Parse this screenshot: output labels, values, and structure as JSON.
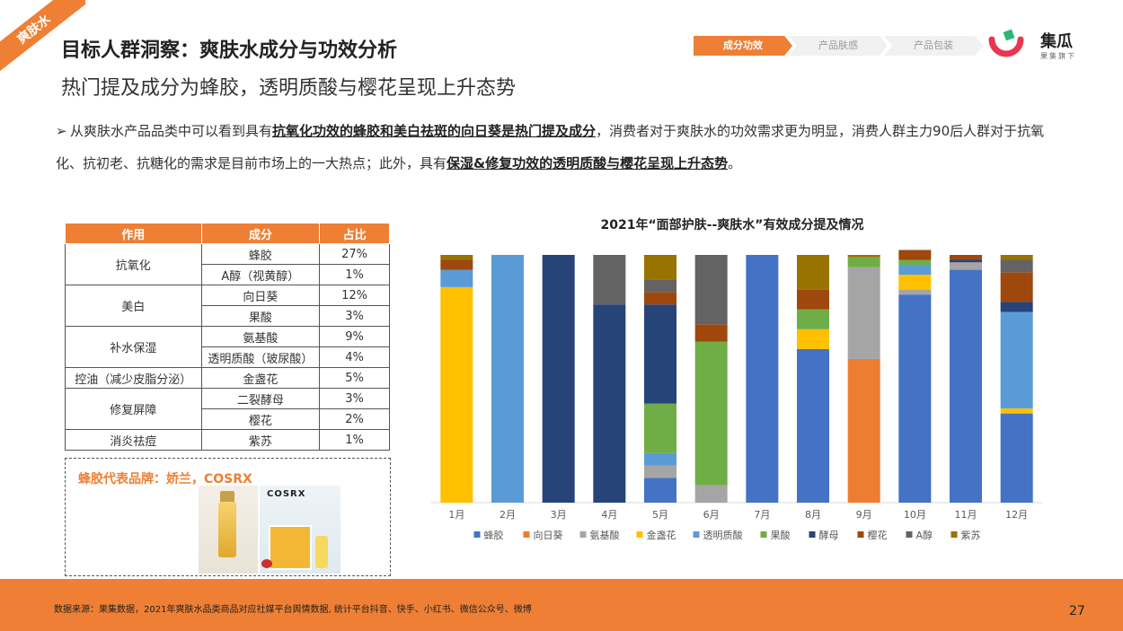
{
  "ribbon": "爽肤水",
  "header": {
    "title": "目标人群洞察：爽肤水成分与功效分析",
    "subtitle": "热门提及成分为蜂胶，透明质酸与樱花呈现上升态势"
  },
  "breadcrumb": [
    "成分功效",
    "产品肤感",
    "产品包装"
  ],
  "logo": {
    "name": "集瓜",
    "sub": "果集旗下"
  },
  "paragraph": {
    "p1": "从爽肤水产品品类中可以看到具有",
    "hl1": "抗氧化功效的蜂胶和美白祛斑的向日葵是热门提及成分",
    "p2": "，消费者对于爽肤水的功效需求更为明显，消费人群主力90后人群对于抗氧化、抗初老、抗糖化的需求是目前市场上的一大热点；此外，具有",
    "hl2": "保湿&修复功效的透明质酸与樱花呈现上升态势",
    "p3": "。"
  },
  "table": {
    "headers": [
      "作用",
      "成分",
      "占比"
    ],
    "groups": [
      {
        "effect": "抗氧化",
        "rows": [
          [
            "蜂胶",
            "27%"
          ],
          [
            "A醇（视黄醇）",
            "1%"
          ]
        ]
      },
      {
        "effect": "美白",
        "rows": [
          [
            "向日葵",
            "12%"
          ],
          [
            "果酸",
            "3%"
          ]
        ]
      },
      {
        "effect": "补水保湿",
        "rows": [
          [
            "氨基酸",
            "9%"
          ],
          [
            "透明质酸（玻尿酸）",
            "4%"
          ]
        ]
      },
      {
        "effect": "控油（减少皮脂分泌）",
        "rows": [
          [
            "金盏花",
            "5%"
          ]
        ]
      },
      {
        "effect": "修复屏障",
        "rows": [
          [
            "二裂酵母",
            "3%"
          ],
          [
            "樱花",
            "2%"
          ]
        ]
      },
      {
        "effect": "消炎祛痘",
        "rows": [
          [
            "紫苏",
            "1%"
          ]
        ]
      }
    ]
  },
  "brand": {
    "title": "蜂胶代表品牌：娇兰，COSRX",
    "cosrx_label": "COSRX"
  },
  "chart_data": {
    "type": "bar",
    "stacked": true,
    "title": "2021年“面部护肤--爽肤水”有效成分提及情况",
    "categories": [
      "1月",
      "2月",
      "3月",
      "4月",
      "5月",
      "6月",
      "7月",
      "8月",
      "9月",
      "10月",
      "11月",
      "12月"
    ],
    "ylim": [
      0,
      100
    ],
    "grid": false,
    "legend_position": "bottom",
    "series": [
      {
        "name": "蜂胶",
        "color": "#4472c4",
        "values": [
          0,
          0,
          0,
          0,
          10,
          0,
          100,
          62,
          0,
          84,
          94,
          36
        ]
      },
      {
        "name": "向日葵",
        "color": "#ed7d31",
        "values": [
          0,
          0,
          0,
          0,
          0,
          0,
          0,
          0,
          58,
          0,
          0,
          0
        ]
      },
      {
        "name": "氨基酸",
        "color": "#a5a5a5",
        "values": [
          0,
          0,
          0,
          0,
          5,
          7,
          0,
          0,
          37,
          2,
          3,
          0
        ]
      },
      {
        "name": "金盏花",
        "color": "#ffc000",
        "values": [
          87,
          0,
          0,
          0,
          0,
          0,
          0,
          8,
          0,
          6,
          0,
          2
        ]
      },
      {
        "name": "透明质酸",
        "color": "#5b9bd5",
        "values": [
          7,
          100,
          0,
          0,
          5,
          0,
          0,
          0,
          0,
          4,
          0,
          39
        ]
      },
      {
        "name": "果酸",
        "color": "#70ad47",
        "values": [
          0,
          0,
          0,
          0,
          20,
          58,
          0,
          8,
          4,
          2,
          0,
          0
        ]
      },
      {
        "name": "酵母",
        "color": "#264478",
        "values": [
          0,
          0,
          100,
          80,
          40,
          0,
          0,
          0,
          0,
          0,
          1,
          4
        ]
      },
      {
        "name": "樱花",
        "color": "#9e480e",
        "values": [
          4,
          0,
          0,
          0,
          5,
          7,
          0,
          8,
          0,
          4,
          2,
          12
        ]
      },
      {
        "name": "A醇",
        "color": "#636363",
        "values": [
          0,
          0,
          0,
          20,
          5,
          28,
          0,
          0,
          0,
          0,
          0,
          5
        ]
      },
      {
        "name": "紫苏",
        "color": "#997300",
        "values": [
          2,
          0,
          0,
          0,
          10,
          0,
          0,
          14,
          1,
          0,
          0,
          2
        ]
      }
    ]
  },
  "footer": {
    "source": "数据来源：果集数据，2021年爽肤水品类商品对应社媒平台舆情数据, 统计平台抖音、快手、小红书、微信公众号、微博",
    "page": "27"
  }
}
